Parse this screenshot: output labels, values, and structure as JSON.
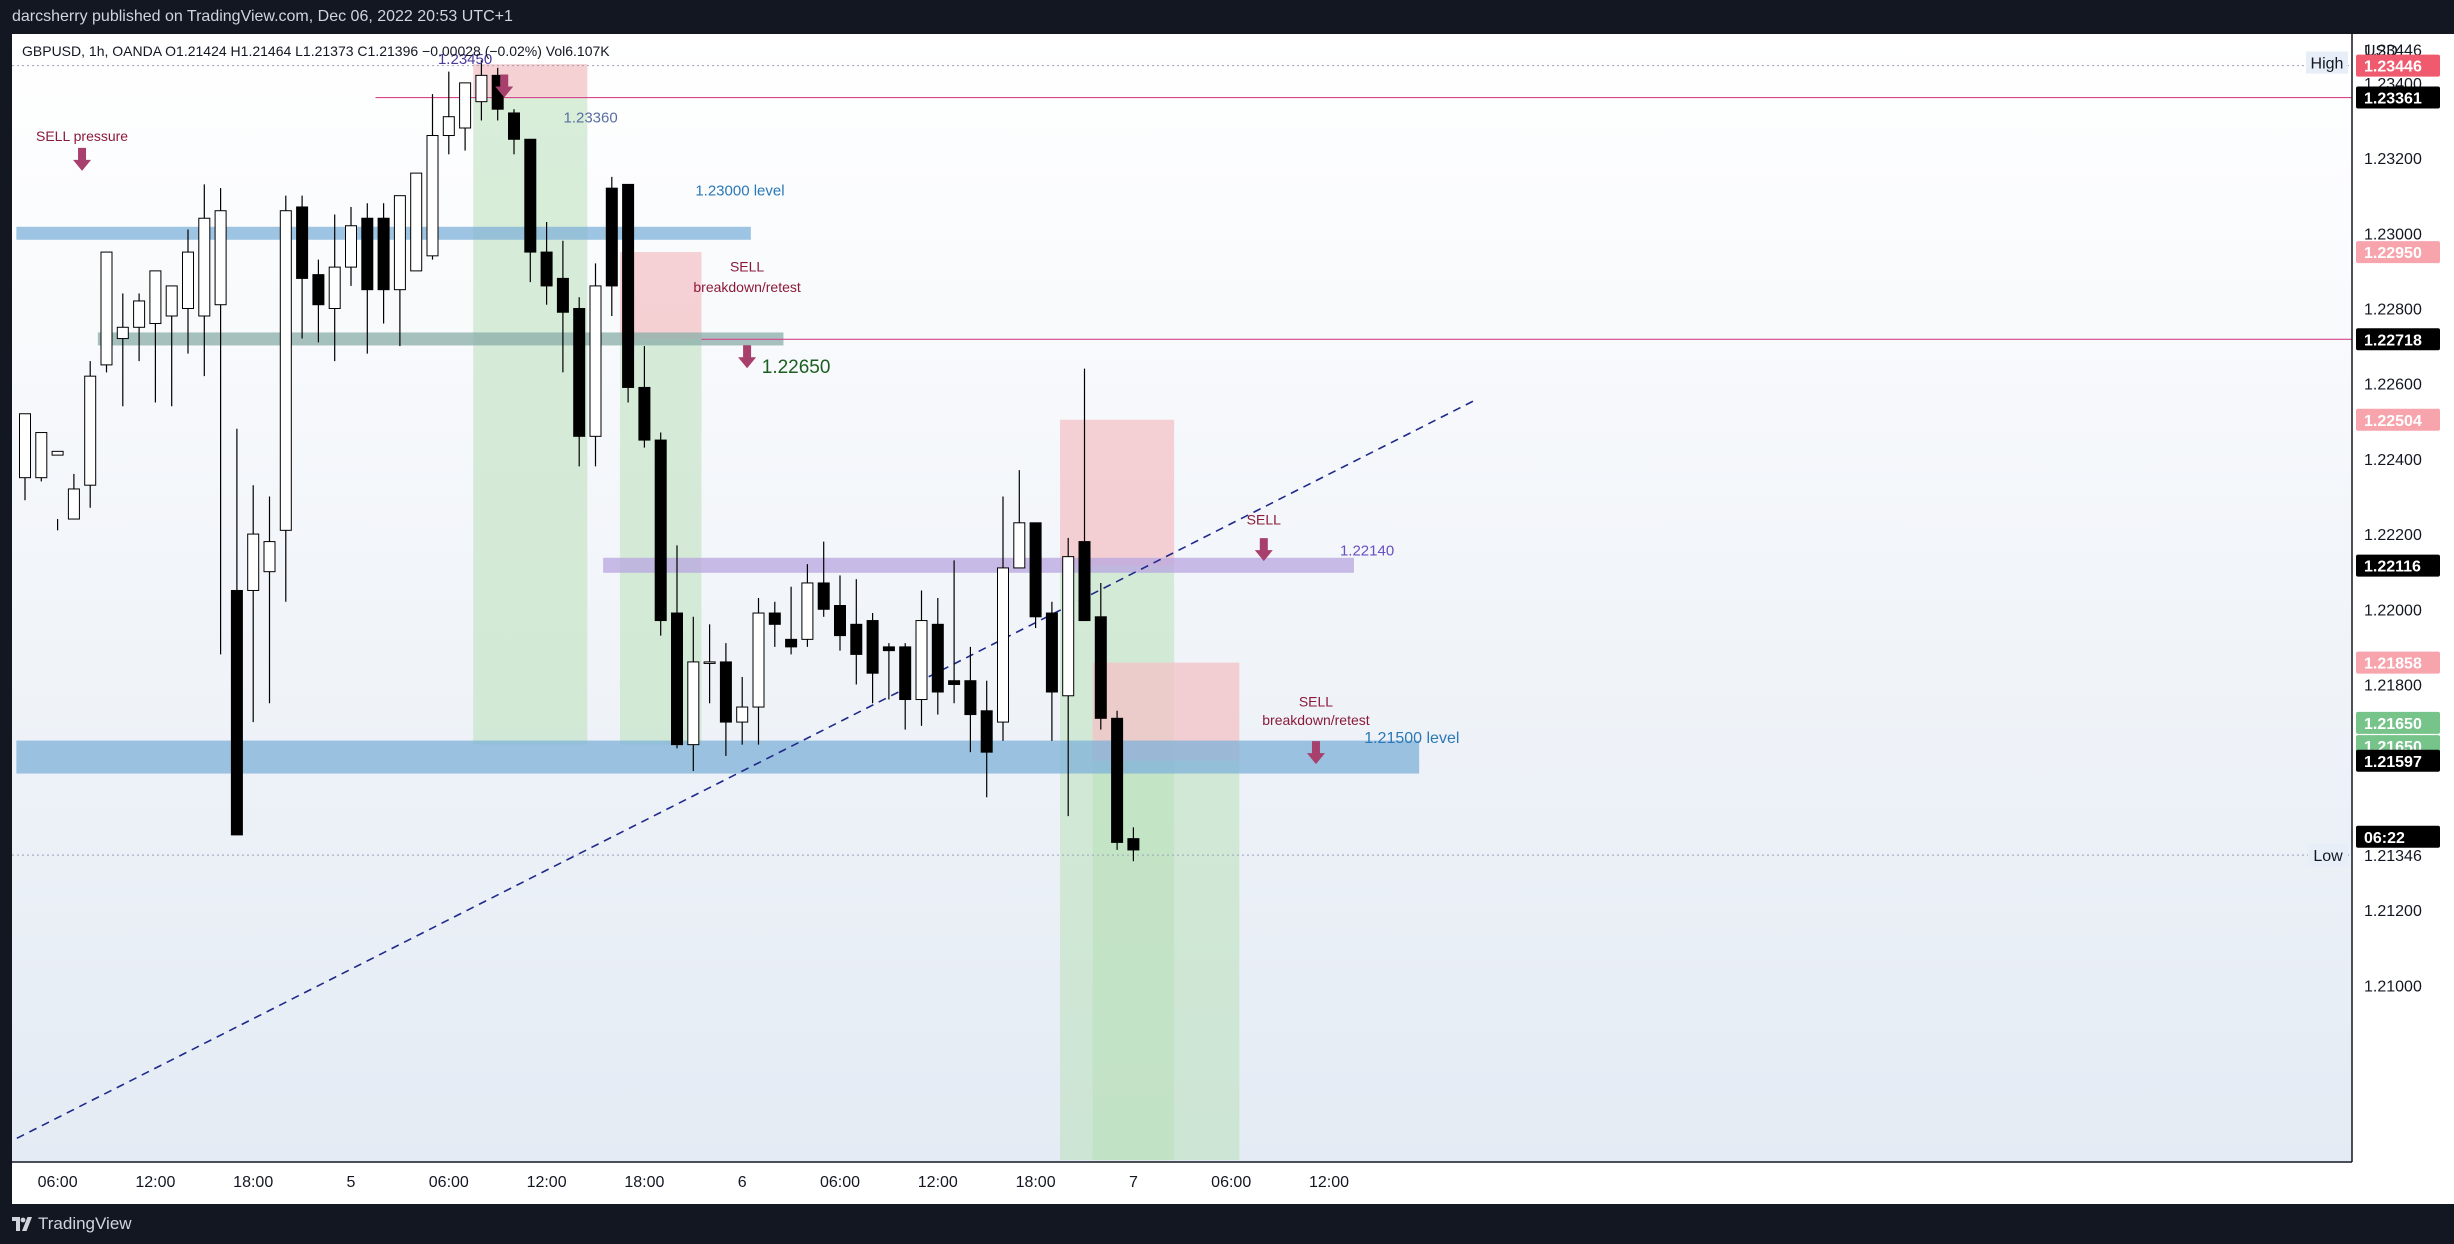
{
  "header": {
    "publish_line": "darcsherry published on TradingView.com, Dec 06, 2022 20:53 UTC+1"
  },
  "footer": {
    "brand": "TradingView"
  },
  "colors": {
    "background": "#ffffff",
    "up_candle": "#ffffff",
    "down_candle": "#000000",
    "resistance_zone": "#7fb2d9",
    "support_zone": "#8aaea8",
    "pivot_zone": "#b9a6e0",
    "short_risk": "#f3c1c6",
    "short_reward": "#b9e0b9",
    "trendline": "#1f2a8a",
    "sell_arrow": "#a8406d"
  },
  "chart_data": {
    "type": "candlestick",
    "symbol_line": "GBPUSD, 1h, OANDA  O1.21424  H1.21464  L1.21373  C1.21396  −0.00028 (−0.02%)  Vol6.107K",
    "currency": "USD",
    "ylim": [
      1.2053,
      1.2353
    ],
    "y_ticks": [
      "1.23400",
      "1.23200",
      "1.23000",
      "1.22800",
      "1.22600",
      "1.22400",
      "1.22200",
      "1.22000",
      "1.21800",
      "1.21600",
      "1.21400",
      "1.21200",
      "1.21000"
    ],
    "x_ticks": [
      {
        "label": "06:00",
        "i": 2
      },
      {
        "label": "12:00",
        "i": 8
      },
      {
        "label": "18:00",
        "i": 14
      },
      {
        "label": "5",
        "i": 20
      },
      {
        "label": "06:00",
        "i": 26
      },
      {
        "label": "12:00",
        "i": 32
      },
      {
        "label": "18:00",
        "i": 38
      },
      {
        "label": "6",
        "i": 44
      },
      {
        "label": "06:00",
        "i": 50
      },
      {
        "label": "12:00",
        "i": 56
      },
      {
        "label": "18:00",
        "i": 62
      },
      {
        "label": "7",
        "i": 68
      },
      {
        "label": "06:00",
        "i": 74
      },
      {
        "label": "12:00",
        "i": 80
      }
    ],
    "candles": [
      [
        1.2235,
        1.2252,
        1.2237,
        1.2229
      ],
      [
        1.2235,
        1.2247,
        1.2241,
        1.2234
      ],
      [
        1.2241,
        1.2242,
        1.2224,
        1.2221
      ],
      [
        1.2224,
        1.2232,
        1.2236,
        1.2225
      ],
      [
        1.2233,
        1.2262,
        1.2266,
        1.2227
      ],
      [
        1.2265,
        1.2295,
        1.2276,
        1.2263
      ],
      [
        1.2272,
        1.2275,
        1.2284,
        1.2254
      ],
      [
        1.2275,
        1.2282,
        1.2284,
        1.2266
      ],
      [
        1.2276,
        1.229,
        1.2286,
        1.2255
      ],
      [
        1.2278,
        1.2286,
        1.2282,
        1.2254
      ],
      [
        1.228,
        1.2295,
        1.2301,
        1.2268
      ],
      [
        1.2278,
        1.2304,
        1.2313,
        1.2262
      ],
      [
        1.2281,
        1.2306,
        1.2312,
        1.2188
      ],
      [
        1.2205,
        1.214,
        1.2248,
        1.2144
      ],
      [
        1.2205,
        1.222,
        1.2233,
        1.217
      ],
      [
        1.221,
        1.2218,
        1.223,
        1.2175
      ],
      [
        1.2221,
        1.2306,
        1.231,
        1.2202
      ],
      [
        1.2307,
        1.2288,
        1.231,
        1.2272
      ],
      [
        1.2289,
        1.2281,
        1.2293,
        1.2271
      ],
      [
        1.228,
        1.2291,
        1.2305,
        1.2266
      ],
      [
        1.2291,
        1.2302,
        1.2307,
        1.2286
      ],
      [
        1.2304,
        1.2285,
        1.2308,
        1.2268
      ],
      [
        1.2304,
        1.2285,
        1.2308,
        1.2276
      ],
      [
        1.2285,
        1.231,
        1.2309,
        1.227
      ],
      [
        1.229,
        1.2316,
        1.2309,
        1.2293
      ],
      [
        1.2294,
        1.2326,
        1.2337,
        1.2293
      ],
      [
        1.2326,
        1.2331,
        1.2343,
        1.2321
      ],
      [
        1.2328,
        1.234,
        1.234,
        1.2322
      ],
      [
        1.2335,
        1.2342,
        1.2346,
        1.233
      ],
      [
        1.2342,
        1.2333,
        1.2344,
        1.233
      ],
      [
        1.2332,
        1.2325,
        1.2333,
        1.2321
      ],
      [
        1.2325,
        1.2295,
        1.2325,
        1.2287
      ],
      [
        1.2295,
        1.2286,
        1.2303,
        1.2281
      ],
      [
        1.2288,
        1.2279,
        1.2298,
        1.2263
      ],
      [
        1.228,
        1.2246,
        1.2283,
        1.2238
      ],
      [
        1.2246,
        1.2286,
        1.2292,
        1.2238
      ],
      [
        1.2312,
        1.2286,
        1.2315,
        1.2278
      ],
      [
        1.2313,
        1.2259,
        1.2313,
        1.2255
      ],
      [
        1.2259,
        1.2245,
        1.227,
        1.2243
      ],
      [
        1.2245,
        1.2197,
        1.2247,
        1.2193
      ],
      [
        1.2199,
        1.2164,
        1.2217,
        1.2163
      ],
      [
        1.2164,
        1.2186,
        1.2198,
        1.2157
      ],
      [
        1.2186,
        1.2186,
        1.2196,
        1.2175
      ],
      [
        1.2186,
        1.217,
        1.2191,
        1.2161
      ],
      [
        1.217,
        1.2174,
        1.2182,
        1.2164
      ],
      [
        1.2174,
        1.2199,
        1.2203,
        1.2164
      ],
      [
        1.2199,
        1.2196,
        1.2202,
        1.219
      ],
      [
        1.2192,
        1.219,
        1.2206,
        1.2188
      ],
      [
        1.2192,
        1.2207,
        1.2212,
        1.219
      ],
      [
        1.2207,
        1.22,
        1.2218,
        1.2198
      ],
      [
        1.2201,
        1.2193,
        1.2209,
        1.2189
      ],
      [
        1.2196,
        1.2188,
        1.2208,
        1.218
      ],
      [
        1.2197,
        1.2183,
        1.2199,
        1.2175
      ],
      [
        1.219,
        1.2189,
        1.2191,
        1.2176
      ],
      [
        1.219,
        1.2176,
        1.2191,
        1.2168
      ],
      [
        1.2176,
        1.2197,
        1.2205,
        1.2169
      ],
      [
        1.2196,
        1.2178,
        1.2203,
        1.2172
      ],
      [
        1.2181,
        1.218,
        1.2213,
        1.2175
      ],
      [
        1.2181,
        1.2172,
        1.219,
        1.2162
      ],
      [
        1.2173,
        1.2162,
        1.2181,
        1.215
      ],
      [
        1.217,
        1.2211,
        1.223,
        1.2165
      ],
      [
        1.2211,
        1.2223,
        1.2237,
        1.2211
      ],
      [
        1.2223,
        1.2198,
        1.2223,
        1.2195
      ],
      [
        1.2199,
        1.2178,
        1.2202,
        1.2165
      ],
      [
        1.2177,
        1.2214,
        1.2219,
        1.2145
      ],
      [
        1.2218,
        1.2197,
        1.2264,
        1.2197
      ],
      [
        1.2198,
        1.2171,
        1.2207,
        1.2168
      ],
      [
        1.2171,
        1.2138,
        1.2173,
        1.2136
      ],
      [
        1.2139,
        1.2136,
        1.2142,
        1.2133
      ]
    ],
    "price_labels": {
      "high": {
        "label": "High",
        "value": "1.23446"
      },
      "low": {
        "label": "Low",
        "value": "1.21346"
      },
      "tags": [
        {
          "value": "1.23446",
          "y": 1.23446,
          "kind": "red"
        },
        {
          "value": "1.23361",
          "y": 1.23361,
          "kind": "black"
        },
        {
          "value": "1.22950",
          "y": 1.2295,
          "kind": "pink"
        },
        {
          "value": "1.22718",
          "y": 1.22718,
          "kind": "black"
        },
        {
          "value": "1.22504",
          "y": 1.22504,
          "kind": "pink"
        },
        {
          "value": "1.22116",
          "y": 1.22116,
          "kind": "black"
        },
        {
          "value": "1.21858",
          "y": 1.21858,
          "kind": "pink"
        },
        {
          "value": "1.21650",
          "y": 1.21698,
          "kind": "green"
        },
        {
          "value": "1.21650",
          "y": 1.21636,
          "kind": "green"
        },
        {
          "value": "1.21597",
          "y": 1.21597,
          "kind": "black"
        },
        {
          "value": "06:22",
          "y": 1.21395,
          "kind": "black"
        }
      ]
    },
    "annotations": {
      "sell_pressure": "SELL pressure",
      "level_23000": "1.23000 level",
      "level_23450": "1.23450",
      "level_23360": "1.23360",
      "sell_retest_1a": "SELL",
      "sell_retest_1b": "breakdown/retest",
      "level_22650": "1.22650",
      "sell_mid": "SELL",
      "level_22140": "1.22140",
      "sell_retest_2a": "SELL",
      "sell_retest_2b": "breakdown/retest",
      "level_21500": "1.21500 level"
    },
    "zones": [
      {
        "name": "1.23000 level",
        "from": 1.23006,
        "to": 1.22994,
        "i_from": -0.5,
        "i_to": 44.5
      },
      {
        "name": "1.22650 support",
        "from": 1.22729,
        "to": 1.22709,
        "i_from": 4.5,
        "i_to": 46.5
      },
      {
        "name": "1.22140 level",
        "from": 1.22124,
        "to": 1.2211,
        "i_from": 35.5,
        "i_to": 81.5
      },
      {
        "name": "1.21500 level",
        "from": 1.21624,
        "to": 1.2159,
        "i_from": -0.5,
        "i_to": 85.5
      }
    ],
    "positions": [
      {
        "i_from": 27.5,
        "i_to": 34.5,
        "entry": 1.23363,
        "stop": 1.2345,
        "target": 1.2164
      },
      {
        "i_from": 36.5,
        "i_to": 41.5,
        "entry": 1.22718,
        "stop": 1.2295,
        "target": 1.2164
      },
      {
        "i_from": 63.5,
        "i_to": 70.5,
        "entry": 1.22116,
        "stop": 1.22504,
        "target": 1.20535
      },
      {
        "i_from": 65.5,
        "i_to": 74.5,
        "entry": 1.21597,
        "stop": 1.21858,
        "target": 1.20535
      }
    ],
    "trendline": {
      "i_from": -0.5,
      "y_from": 1.20593,
      "i_to": 89,
      "y_to": 1.22557
    },
    "hlines": [
      {
        "y": 1.23361,
        "i_from": 21.5
      },
      {
        "y": 1.22718,
        "i_from": 41.5
      }
    ]
  }
}
